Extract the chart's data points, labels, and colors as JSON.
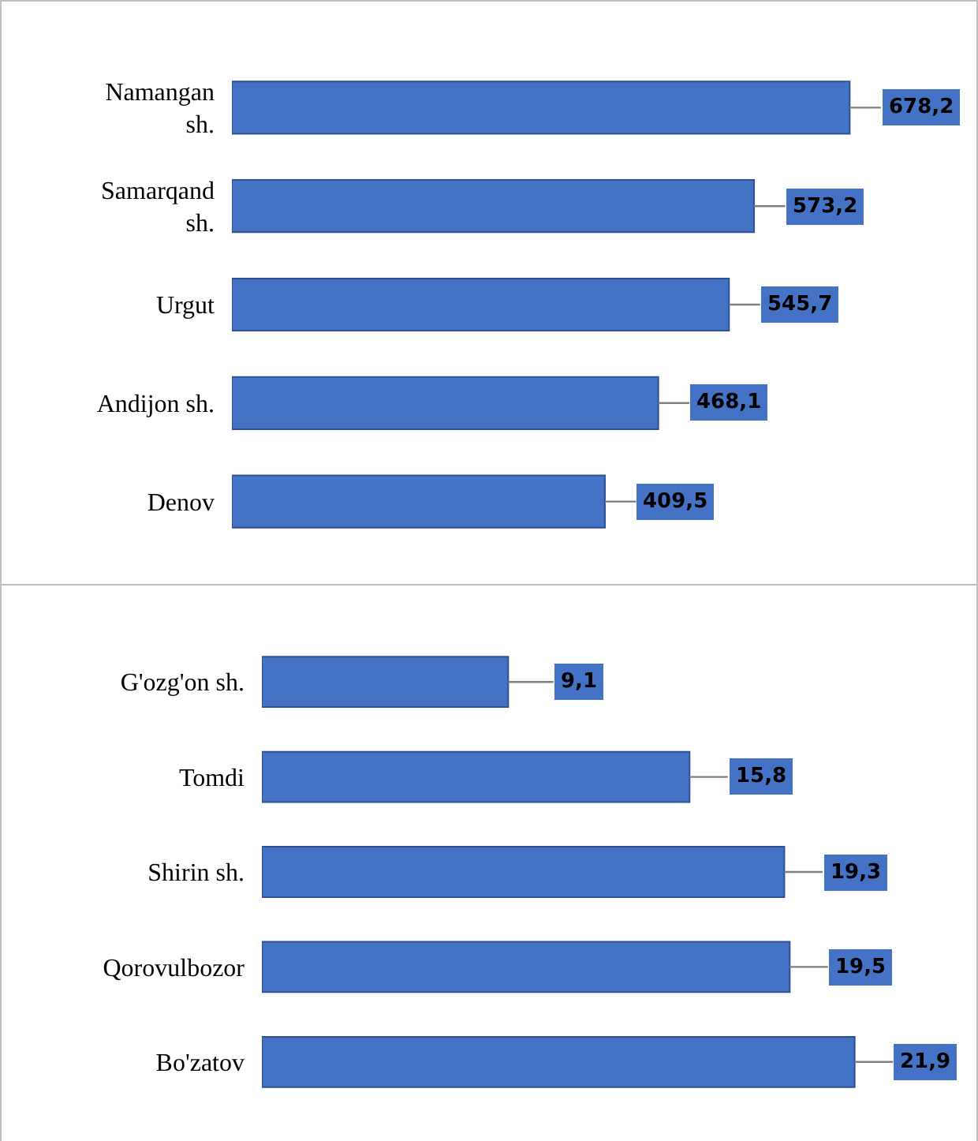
{
  "chart_data": [
    {
      "type": "bar",
      "orientation": "horizontal",
      "data_labels": true,
      "color": "#4472c4",
      "categories": [
        "Namangan sh.",
        "Samarqand sh.",
        "Urgut",
        "Andijon sh.",
        "Denov"
      ],
      "values": [
        678.2,
        573.2,
        545.7,
        468.1,
        409.5
      ],
      "value_labels": [
        "678,2",
        "573,2",
        "545,7",
        "468,1",
        "409,5"
      ]
    },
    {
      "type": "bar",
      "orientation": "horizontal",
      "data_labels": true,
      "color": "#4472c4",
      "categories": [
        "G'ozg'on sh.",
        "Tomdi",
        "Shirin sh.",
        "Qorovulbozor",
        "Bo'zatov"
      ],
      "values": [
        9.1,
        15.8,
        19.3,
        19.5,
        21.9
      ],
      "value_labels": [
        "9,1",
        "15,8",
        "19,3",
        "19,5",
        "21,9"
      ]
    }
  ]
}
